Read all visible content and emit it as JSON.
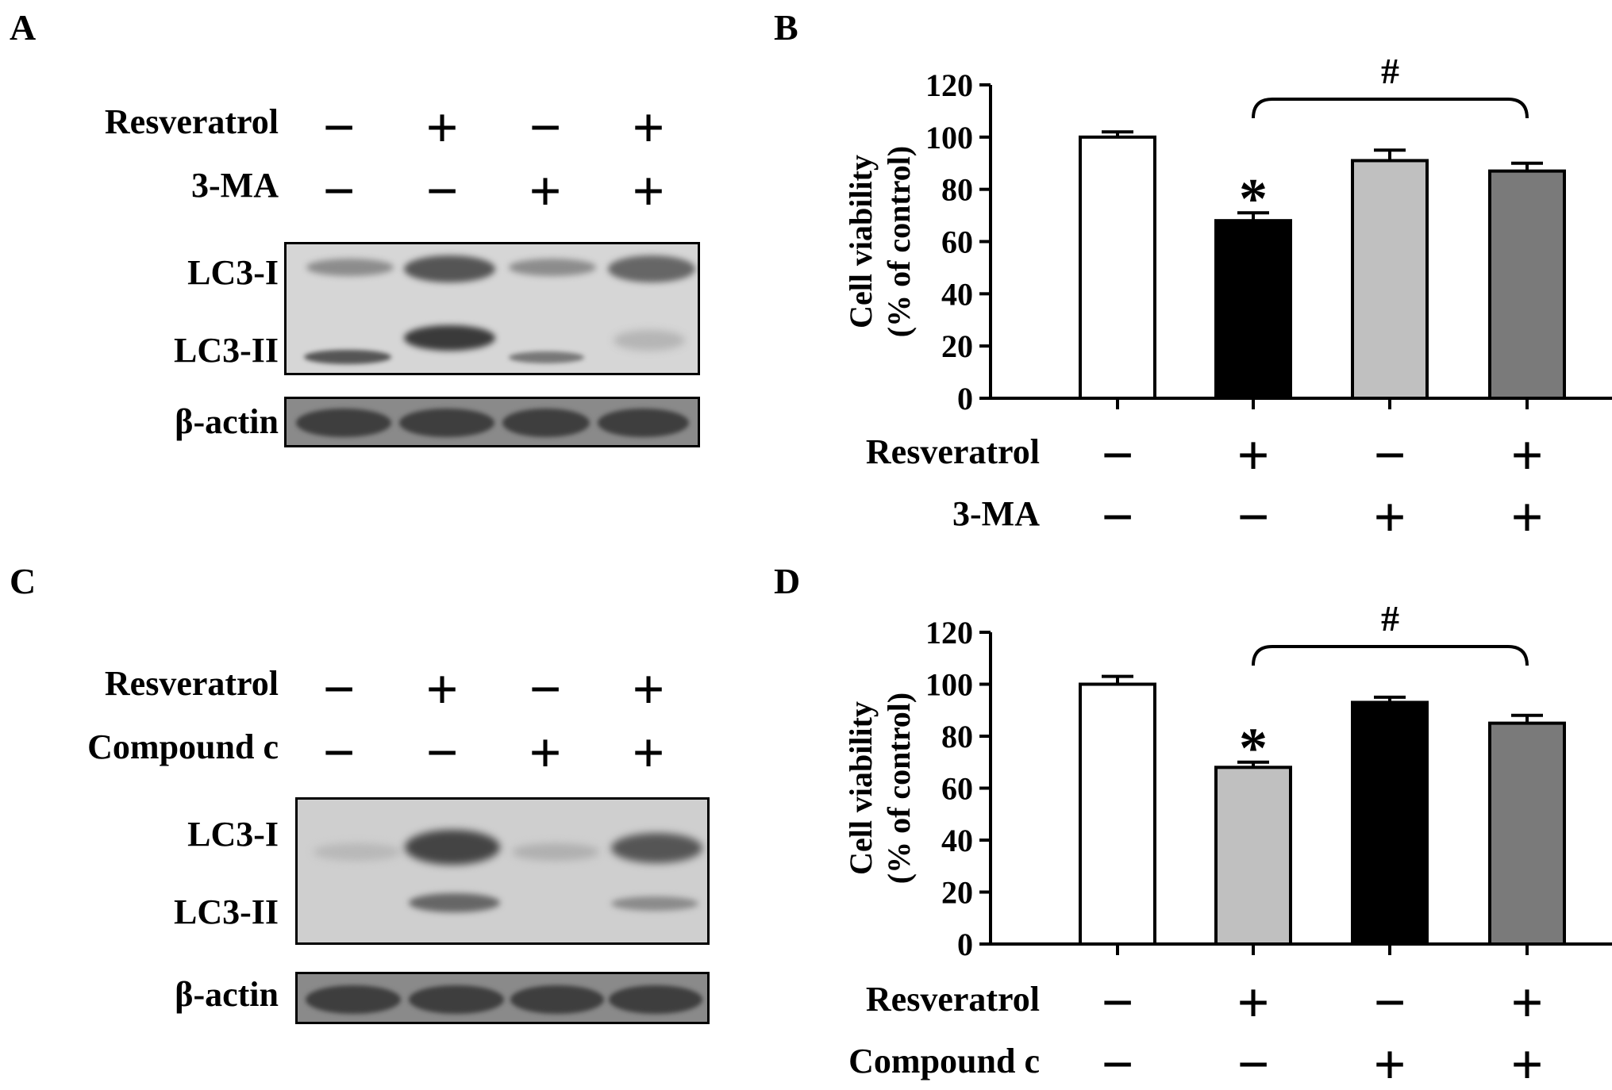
{
  "panels": {
    "A": {
      "letter": "A",
      "conditions": [
        {
          "label": "Resveratrol",
          "signs": [
            "−",
            "+",
            "−",
            "+"
          ]
        },
        {
          "label": "3-MA",
          "signs": [
            "−",
            "−",
            "+",
            "+"
          ]
        }
      ],
      "bands": [
        "LC3-I",
        "LC3-II"
      ],
      "loading": "β-actin"
    },
    "C": {
      "letter": "C",
      "conditions": [
        {
          "label": "Resveratrol",
          "signs": [
            "−",
            "+",
            "−",
            "+"
          ]
        },
        {
          "label": "Compound c",
          "signs": [
            "−",
            "−",
            "+",
            "+"
          ]
        }
      ],
      "bands": [
        "LC3-I",
        "LC3-II"
      ],
      "loading": "β-actin"
    }
  },
  "chart_data": [
    {
      "panel": "B",
      "type": "bar",
      "ylabel_line1": "Cell viability",
      "ylabel_line2": "(% of control)",
      "ylim": [
        0,
        120
      ],
      "yticks": [
        0,
        20,
        40,
        60,
        80,
        100,
        120
      ],
      "values": [
        100,
        68,
        91,
        87
      ],
      "errors": [
        2,
        3,
        4,
        3
      ],
      "bar_colors": [
        "#ffffff",
        "#000000",
        "#c0c0c0",
        "#7a7a7a"
      ],
      "significance": [
        {
          "bar": 1,
          "mark": "*"
        }
      ],
      "bracket": {
        "from": 1,
        "to": 3,
        "mark": "#"
      },
      "conditions": [
        {
          "label": "Resveratrol",
          "signs": [
            "−",
            "+",
            "−",
            "+"
          ]
        },
        {
          "label": "3-MA",
          "signs": [
            "−",
            "−",
            "+",
            "+"
          ]
        }
      ]
    },
    {
      "panel": "D",
      "type": "bar",
      "ylabel_line1": "Cell viability",
      "ylabel_line2": "(% of control)",
      "ylim": [
        0,
        120
      ],
      "yticks": [
        0,
        20,
        40,
        60,
        80,
        100,
        120
      ],
      "values": [
        100,
        68,
        93,
        85
      ],
      "errors": [
        3,
        2,
        2,
        3
      ],
      "bar_colors": [
        "#ffffff",
        "#c0c0c0",
        "#000000",
        "#7a7a7a"
      ],
      "significance": [
        {
          "bar": 1,
          "mark": "*"
        }
      ],
      "bracket": {
        "from": 1,
        "to": 3,
        "mark": "#"
      },
      "conditions": [
        {
          "label": "Resveratrol",
          "signs": [
            "−",
            "+",
            "−",
            "+"
          ]
        },
        {
          "label": "Compound c",
          "signs": [
            "−",
            "−",
            "+",
            "+"
          ]
        }
      ]
    }
  ]
}
